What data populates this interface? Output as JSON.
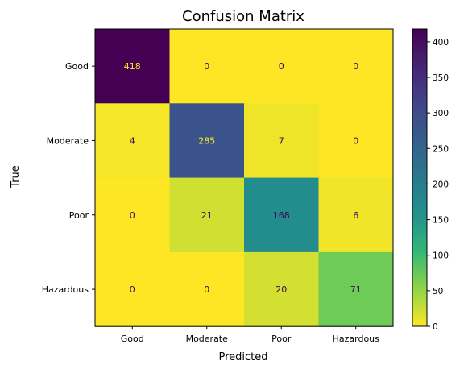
{
  "chart_data": {
    "type": "heatmap",
    "title": "Confusion Matrix",
    "xlabel": "Predicted",
    "ylabel": "True",
    "x_categories": [
      "Good",
      "Moderate",
      "Poor",
      "Hazardous"
    ],
    "y_categories": [
      "Good",
      "Moderate",
      "Poor",
      "Hazardous"
    ],
    "values": [
      [
        418,
        0,
        0,
        0
      ],
      [
        4,
        285,
        7,
        0
      ],
      [
        0,
        21,
        168,
        6
      ],
      [
        0,
        0,
        20,
        71
      ]
    ],
    "colormap": "viridis_r",
    "vmin": 0,
    "vmax": 418,
    "colorbar_ticks": [
      0,
      50,
      100,
      150,
      200,
      250,
      300,
      350,
      400
    ],
    "text_color_low": "#3f0054",
    "text_color_high": "#fde725"
  }
}
